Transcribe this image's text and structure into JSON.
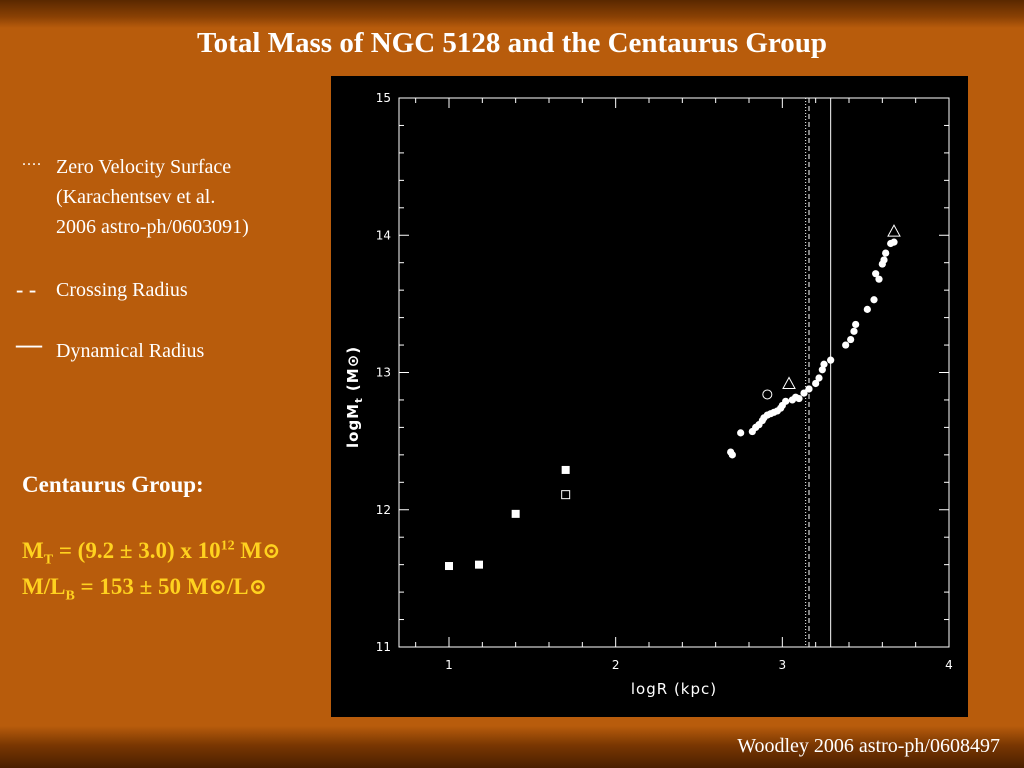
{
  "slide": {
    "title": "Total Mass of NGC 5128 and the Centaurus Group",
    "footer": "Woodley 2006 astro-ph/0608497"
  },
  "legend": [
    {
      "symbol": "....",
      "style": "dotted",
      "lines": [
        "Zero Velocity Surface",
        "(Karachentsev et al.",
        "2006 astro-ph/0603091)"
      ]
    },
    {
      "symbol": "- -",
      "style": "dashed",
      "lines": [
        "Crossing Radius"
      ]
    },
    {
      "symbol": "—",
      "style": "solid",
      "lines": [
        "Dynamical Radius"
      ]
    }
  ],
  "group": {
    "heading": "Centaurus Group:",
    "mass_prefix": "M",
    "mass_sub": "T",
    "mass_value": " = (9.2 ± 3.0) x 10",
    "mass_exp": "12",
    "mass_unit": " M",
    "sun": "⊙",
    "ml_prefix": "M/L",
    "ml_sub": "B",
    "ml_value": " = 153 ± 50 M",
    "ml_sep": "/L"
  },
  "colors": {
    "background": "#b85c0c",
    "title": "#ffffff",
    "highlight": "#ffd21f",
    "chart_bg": "#000000",
    "chart_fg": "#ffffff"
  },
  "chart_data": {
    "type": "scatter",
    "xlabel": "logR (kpc)",
    "ylabel": "logM",
    "ylabel_sub": "t",
    "ylabel_unit": "(M⊙)",
    "xlim": [
      0.7,
      4.0
    ],
    "ylim": [
      11,
      15
    ],
    "xticks": [
      1,
      2,
      3,
      4
    ],
    "yticks": [
      11,
      12,
      13,
      14,
      15
    ],
    "vertical_lines": [
      {
        "x": 3.14,
        "style": "dotted"
      },
      {
        "x": 3.16,
        "style": "dashed"
      },
      {
        "x": 3.29,
        "style": "solid"
      }
    ],
    "series": [
      {
        "marker": "filled-circle",
        "points": [
          [
            2.69,
            12.42
          ],
          [
            2.7,
            12.4
          ],
          [
            2.75,
            12.56
          ],
          [
            2.82,
            12.57
          ],
          [
            2.84,
            12.6
          ],
          [
            2.86,
            12.62
          ],
          [
            2.88,
            12.65
          ],
          [
            2.89,
            12.67
          ],
          [
            2.91,
            12.69
          ],
          [
            2.93,
            12.7
          ],
          [
            2.95,
            12.71
          ],
          [
            2.97,
            12.72
          ],
          [
            2.99,
            12.74
          ],
          [
            3.0,
            12.76
          ],
          [
            3.02,
            12.79
          ],
          [
            3.06,
            12.8
          ],
          [
            3.08,
            12.82
          ],
          [
            3.1,
            12.81
          ],
          [
            3.13,
            12.85
          ],
          [
            3.16,
            12.88
          ],
          [
            3.2,
            12.92
          ],
          [
            3.22,
            12.96
          ],
          [
            3.24,
            13.02
          ],
          [
            3.25,
            13.06
          ],
          [
            3.29,
            13.09
          ],
          [
            3.38,
            13.2
          ],
          [
            3.41,
            13.24
          ],
          [
            3.43,
            13.3
          ],
          [
            3.44,
            13.35
          ],
          [
            3.51,
            13.46
          ],
          [
            3.55,
            13.53
          ],
          [
            3.56,
            13.72
          ],
          [
            3.58,
            13.68
          ],
          [
            3.6,
            13.79
          ],
          [
            3.61,
            13.82
          ],
          [
            3.62,
            13.87
          ],
          [
            3.65,
            13.94
          ],
          [
            3.67,
            13.95
          ]
        ]
      },
      {
        "marker": "filled-square",
        "points": [
          [
            1.0,
            11.59
          ],
          [
            1.18,
            11.6
          ],
          [
            1.4,
            11.97
          ],
          [
            1.7,
            12.29
          ]
        ]
      },
      {
        "marker": "open-square",
        "points": [
          [
            1.7,
            12.11
          ]
        ]
      },
      {
        "marker": "open-circle",
        "points": [
          [
            2.91,
            12.84
          ]
        ]
      },
      {
        "marker": "open-triangle",
        "points": [
          [
            3.04,
            12.92
          ],
          [
            3.67,
            14.03
          ]
        ]
      }
    ]
  }
}
